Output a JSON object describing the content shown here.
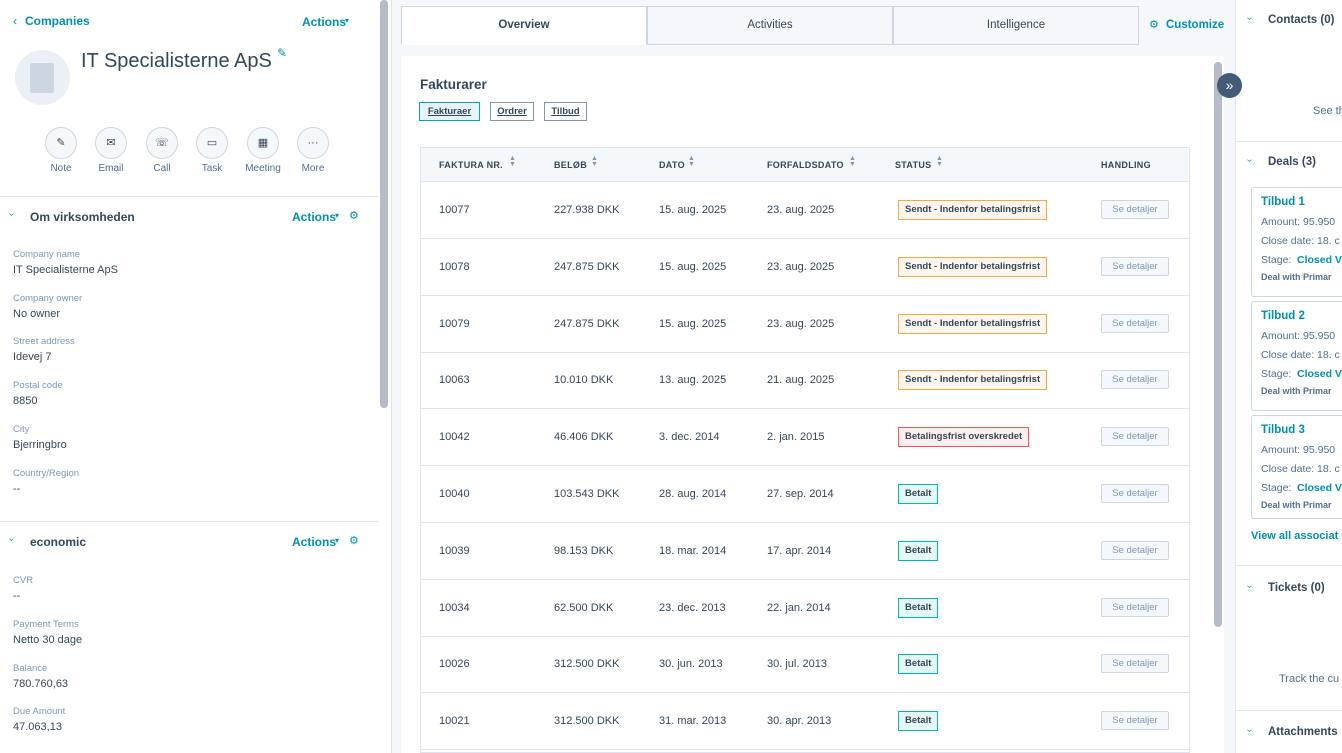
{
  "left": {
    "back": "Companies",
    "actions": "Actions",
    "company_name": "IT Specialisterne ApS",
    "quick_actions": [
      "Note",
      "Email",
      "Call",
      "Task",
      "Meeting",
      "More"
    ],
    "sections": [
      {
        "title": "Om virksomheden",
        "actions": "Actions",
        "fields": [
          {
            "label": "Company name",
            "value": "IT Specialisterne ApS"
          },
          {
            "label": "Company owner",
            "value": "No owner"
          },
          {
            "label": "Street address",
            "value": "Idevej 7"
          },
          {
            "label": "Postal code",
            "value": "8850"
          },
          {
            "label": "City",
            "value": "Bjerringbro"
          },
          {
            "label": "Country/Region",
            "value": "--"
          }
        ]
      },
      {
        "title": "economic",
        "actions": "Actions",
        "fields": [
          {
            "label": "CVR",
            "value": "--"
          },
          {
            "label": "Payment Terms",
            "value": "Netto 30 dage"
          },
          {
            "label": "Balance",
            "value": "780.760,63"
          },
          {
            "label": "Due Amount",
            "value": "47.063,13"
          }
        ]
      }
    ]
  },
  "tabs": [
    "Overview",
    "Activities",
    "Intelligence"
  ],
  "customize": "Customize",
  "card": {
    "title": "Fakturarer",
    "filters": [
      "Fakturaer",
      "Ordrer",
      "Tilbud"
    ],
    "headers": [
      "FAKTURA NR.",
      "BELØB",
      "DATO",
      "FORFALDSDATO",
      "STATUS",
      "HANDLING"
    ],
    "rows": [
      {
        "nr": "10077",
        "amount": "227.938 DKK",
        "date": "15. aug. 2025",
        "due": "23. aug. 2025",
        "status": "Sendt - Indenfor betalingsfrist",
        "status_color": "#f2a94e",
        "action": "Se detaljer"
      },
      {
        "nr": "10078",
        "amount": "247.875 DKK",
        "date": "15. aug. 2025",
        "due": "23. aug. 2025",
        "status": "Sendt - Indenfor betalingsfrist",
        "status_color": "#f2a94e",
        "action": "Se detaljer"
      },
      {
        "nr": "10079",
        "amount": "247.875 DKK",
        "date": "15. aug. 2025",
        "due": "23. aug. 2025",
        "status": "Sendt - Indenfor betalingsfrist",
        "status_color": "#f2a94e",
        "action": "Se detaljer"
      },
      {
        "nr": "10063",
        "amount": "10.010 DKK",
        "date": "13. aug. 2025",
        "due": "21. aug. 2025",
        "status": "Sendt - Indenfor betalingsfrist",
        "status_color": "#f2a94e",
        "action": "Se detaljer"
      },
      {
        "nr": "10042",
        "amount": "46.406 DKK",
        "date": "3. dec. 2014",
        "due": "2. jan. 2015",
        "status": "Betalingsfrist overskredet",
        "status_color": "#f2545b",
        "action": "Se detaljer"
      },
      {
        "nr": "10040",
        "amount": "103.543 DKK",
        "date": "28. aug. 2014",
        "due": "27. sep. 2014",
        "status": "Betalt",
        "status_color": "#00bda5",
        "action": "Se detaljer"
      },
      {
        "nr": "10039",
        "amount": "98.153 DKK",
        "date": "18. mar. 2014",
        "due": "17. apr. 2014",
        "status": "Betalt",
        "status_color": "#00bda5",
        "action": "Se detaljer"
      },
      {
        "nr": "10034",
        "amount": "62.500 DKK",
        "date": "23. dec. 2013",
        "due": "22. jan. 2014",
        "status": "Betalt",
        "status_color": "#00bda5",
        "action": "Se detaljer"
      },
      {
        "nr": "10026",
        "amount": "312.500 DKK",
        "date": "30. jun. 2013",
        "due": "30. jul. 2013",
        "status": "Betalt",
        "status_color": "#00bda5",
        "action": "Se detaljer"
      },
      {
        "nr": "10021",
        "amount": "312.500 DKK",
        "date": "31. mar. 2013",
        "due": "30. apr. 2013",
        "status": "Betalt",
        "status_color": "#00bda5",
        "action": "Se detaljer"
      }
    ]
  },
  "right": {
    "contacts": {
      "title": "Contacts (0)",
      "text": "See th"
    },
    "deals": {
      "title": "Deals (3)",
      "items": [
        {
          "name": "Tilbud 1",
          "amount": "Amount: 95.950",
          "close": "Close date: 18. c",
          "stage_label": "Stage:",
          "stage": "Closed V",
          "note": "Deal with Primar"
        },
        {
          "name": "Tilbud 2",
          "amount": "Amount: 95.950",
          "close": "Close date: 18. c",
          "stage_label": "Stage:",
          "stage": "Closed V",
          "note": "Deal with Primar"
        },
        {
          "name": "Tilbud 3",
          "amount": "Amount: 95.950",
          "close": "Close date: 18. c",
          "stage_label": "Stage:",
          "stage": "Closed V",
          "note": "Deal with Primar"
        }
      ],
      "view_all": "View all associat"
    },
    "tickets": {
      "title": "Tickets (0)",
      "text": "Track the cu"
    },
    "attachments": {
      "title": "Attachments"
    }
  }
}
